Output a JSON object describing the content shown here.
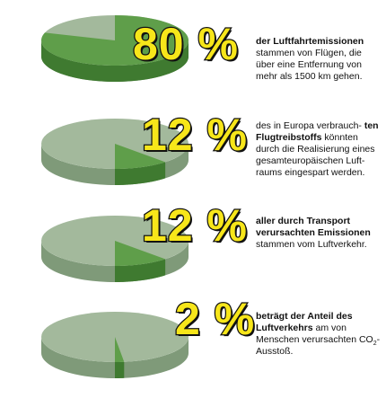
{
  "colors": {
    "share_top": "#5f9e4a",
    "share_side": "#3f7a30",
    "rest_top": "#a3b99c",
    "rest_side": "#7f9a79",
    "number_fill": "#f7e61a",
    "number_outline": "#111111"
  },
  "chart_data": {
    "type": "pie",
    "charts": [
      {
        "value_percent": 80,
        "rest_percent": 20,
        "big_label": "80 %",
        "text_bold": "der Luftfahrtemissionen",
        "text_regular": "stammen von Flügen, die über eine Entfernung von mehr als 1500 km gehen."
      },
      {
        "value_percent": 12,
        "rest_percent": 88,
        "big_label": "12 %",
        "text_bold": "",
        "text_regular_pre": "des in Europa verbrauch-",
        "text_bold2": "ten Flugtreibstoffs",
        "text_regular": "könnten durch die Realisierung eines gesamteuropäischen Luft-raums eingespart werden."
      },
      {
        "value_percent": 12,
        "rest_percent": 88,
        "big_label": "12 %",
        "text_bold": "aller durch Transport verursachten Emissionen",
        "text_regular": "stammen vom Luftverkehr."
      },
      {
        "value_percent": 2,
        "rest_percent": 98,
        "big_label": "2 %",
        "text_bold": "beträgt der Anteil des Luftverkehrs",
        "text_regular": "am von Menschen verursachten CO",
        "text_sub": "2",
        "text_end": "-Ausstoß."
      }
    ]
  }
}
